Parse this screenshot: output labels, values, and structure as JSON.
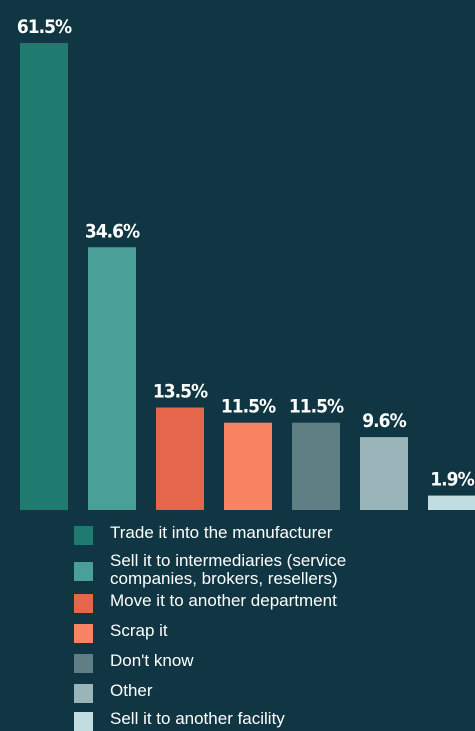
{
  "chart_data": {
    "type": "bar",
    "categories": [
      "Trade it into the manufacturer",
      "Sell it to intermediaries (service\ncompanies, brokers, resellers)",
      "Move it to another department",
      "Scrap it",
      "Don't know",
      "Other",
      "Sell it to another facility"
    ],
    "values": [
      61.5,
      34.6,
      13.5,
      11.5,
      11.5,
      9.6,
      1.9
    ],
    "value_labels": [
      "61.5%",
      "34.6%",
      "13.5%",
      "11.5%",
      "11.5%",
      "9.6%",
      "1.9%"
    ],
    "colors": [
      "#1f7a70",
      "#4aa099",
      "#e5664a",
      "#f98464",
      "#5f7f84",
      "#9ab5b9",
      "#c2dde1"
    ],
    "ylim": [
      0,
      61.5
    ],
    "grid": false,
    "legend_position": "bottom"
  }
}
